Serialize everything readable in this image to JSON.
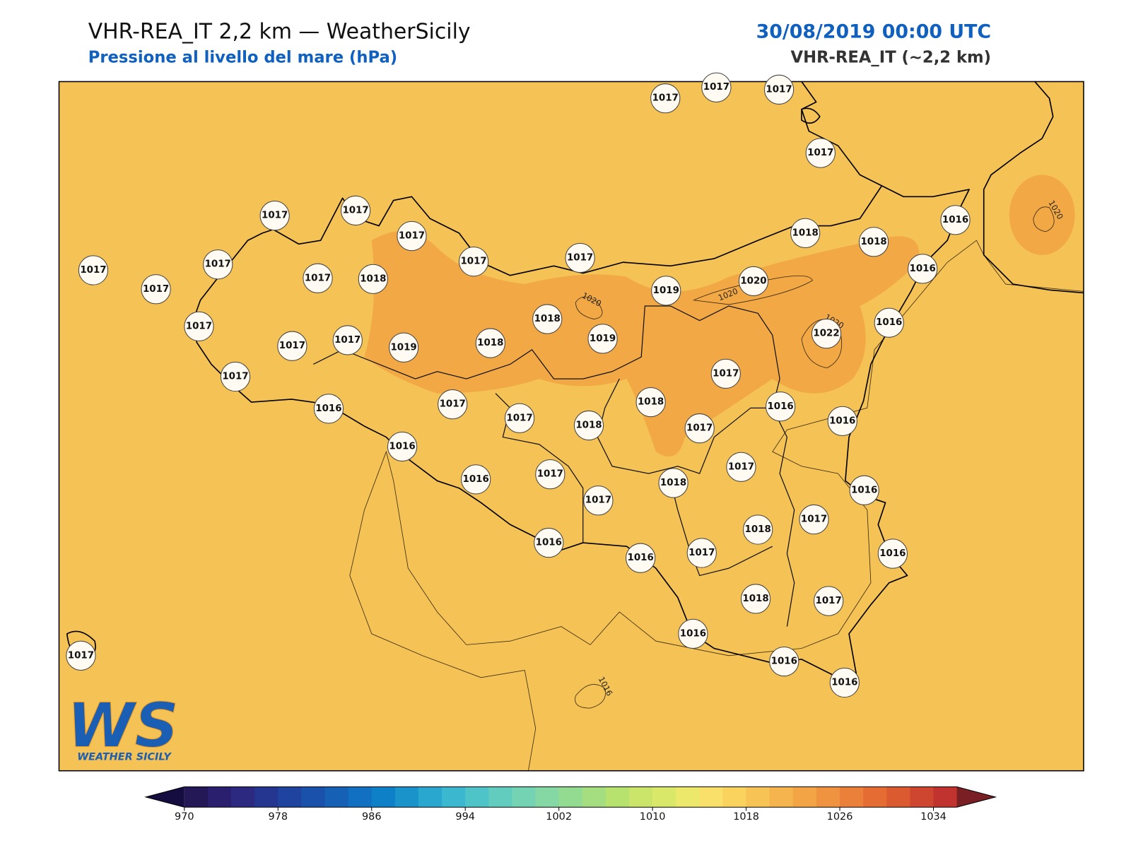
{
  "header": {
    "title": "VHR-REA_IT 2,2 km — WeatherSicily",
    "subtitle": "Pressione al livello del mare (hPa)",
    "datetime": "30/08/2019 00:00 UTC",
    "model": "VHR-REA_IT (~2,2 km)"
  },
  "stations": [
    1017,
    1017,
    1017,
    1017,
    1017,
    1017,
    1017,
    1017,
    1017,
    1018,
    1018,
    1016,
    1017,
    1017,
    1017,
    1018,
    1017,
    1019,
    1020,
    1016,
    1017,
    1018,
    1019,
    1022,
    1016,
    1017,
    1017,
    1019,
    1018,
    1017,
    1017,
    1016,
    1017,
    1018,
    1016,
    1016,
    1017,
    1018,
    1017,
    1016,
    1016,
    1017,
    1017,
    1018,
    1016,
    1017,
    1017,
    1018,
    1016,
    1016,
    1017,
    1016,
    1018,
    1017,
    1016,
    1016,
    1016,
    1017
  ],
  "contour_labels": [
    "1020",
    "1020",
    "1020",
    "1020",
    "1016"
  ],
  "logo": {
    "mark": "WS",
    "name": "WEATHER SICILY"
  },
  "colorbar": {
    "range": [
      970,
      1036
    ],
    "ticks": [
      970,
      978,
      986,
      994,
      1002,
      1010,
      1018,
      1026,
      1034
    ],
    "colors": [
      "#241856",
      "#2a1f6e",
      "#2b2a80",
      "#253690",
      "#1f44a0",
      "#1a52ab",
      "#1660b6",
      "#1170c2",
      "#0d80c8",
      "#1a93cb",
      "#2aa7ce",
      "#3bb8cf",
      "#4fc4c8",
      "#62cdbf",
      "#74d3b2",
      "#85d8a3",
      "#94db92",
      "#a4de80",
      "#b7e26e",
      "#cae56a",
      "#dae86a",
      "#ebe86c",
      "#f8e06a",
      "#fad25e",
      "#f7c355",
      "#f5b44d",
      "#f3a545",
      "#ef9340",
      "#eb803a",
      "#e56d34",
      "#dc5a30",
      "#cf4630",
      "#c1332e"
    ],
    "under": "#150d40",
    "over": "#7a1f24"
  }
}
